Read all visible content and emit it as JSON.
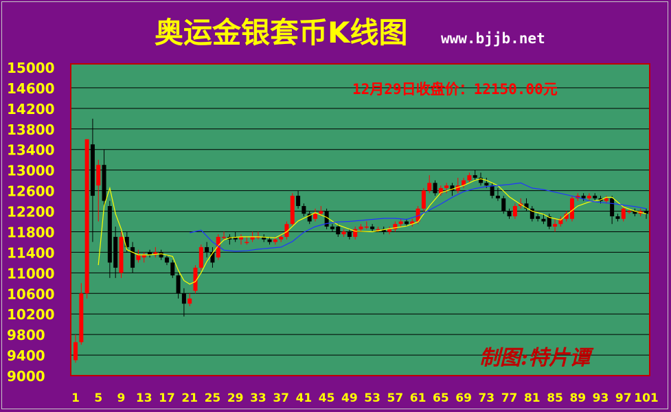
{
  "header": {
    "title": "奥运金银套币K线图",
    "site": "www.bjjb.net"
  },
  "annotations": {
    "close_price": "12月29日收盘价：12150.00元",
    "author": "制图:特片谭"
  },
  "colors": {
    "background": "#7a0f87",
    "plot_bg": "#3c9b6b",
    "up_candle": "#ff0000",
    "down_candle": "#000000",
    "ma_short": "#ffff00",
    "ma_long": "#2233ff",
    "axis_text": "#ffff00"
  },
  "chart_data": {
    "type": "candlestick",
    "title": "奥运金银套币K线图",
    "ylim": [
      9000,
      15000
    ],
    "yticks": [
      9000,
      9400,
      9800,
      10200,
      10600,
      11000,
      11400,
      11800,
      12200,
      12600,
      13000,
      13400,
      13800,
      14200,
      14600,
      15000
    ],
    "xticks": [
      1,
      5,
      9,
      13,
      17,
      21,
      25,
      29,
      33,
      37,
      41,
      45,
      49,
      53,
      57,
      61,
      65,
      69,
      73,
      77,
      81,
      85,
      89,
      93,
      97,
      101
    ],
    "grid": true,
    "candles": [
      [
        1,
        9300,
        9650,
        9250,
        9800
      ],
      [
        2,
        9650,
        10600,
        9600,
        10800
      ],
      [
        3,
        10600,
        13600,
        10500,
        13600
      ],
      [
        4,
        13500,
        12500,
        11600,
        14000
      ],
      [
        5,
        12700,
        13100,
        12000,
        13200
      ],
      [
        6,
        13100,
        12400,
        12300,
        13400
      ],
      [
        7,
        12300,
        11200,
        10900,
        12400
      ],
      [
        8,
        11700,
        11100,
        10900,
        11900
      ],
      [
        9,
        11000,
        11700,
        10900,
        11800
      ],
      [
        10,
        11700,
        11500,
        11400,
        11800
      ],
      [
        11,
        11500,
        11100,
        11000,
        11600
      ],
      [
        12,
        11250,
        11350,
        11200,
        11450
      ],
      [
        13,
        11300,
        11350,
        11200,
        11400
      ],
      [
        14,
        11400,
        11350,
        11300,
        11450
      ],
      [
        15,
        11350,
        11400,
        11300,
        11500
      ],
      [
        16,
        11400,
        11300,
        11250,
        11450
      ],
      [
        17,
        11300,
        11200,
        11150,
        11350
      ],
      [
        18,
        11200,
        10950,
        10900,
        11250
      ],
      [
        19,
        10950,
        10600,
        10500,
        11000
      ],
      [
        20,
        10600,
        10400,
        10150,
        10700
      ],
      [
        21,
        10400,
        10500,
        10350,
        10600
      ],
      [
        22,
        10650,
        11100,
        10600,
        11150
      ],
      [
        23,
        11100,
        11500,
        11050,
        11550
      ],
      [
        24,
        11500,
        11400,
        11300,
        11600
      ],
      [
        25,
        11400,
        11200,
        11100,
        11500
      ],
      [
        26,
        11300,
        11700,
        11250,
        11750
      ],
      [
        27,
        11700,
        11700,
        11650,
        11800
      ],
      [
        28,
        11700,
        11650,
        11550,
        11750
      ],
      [
        29,
        11700,
        11650,
        11600,
        11800
      ],
      [
        30,
        11650,
        11700,
        11550,
        11750
      ],
      [
        31,
        11600,
        11600,
        11550,
        11700
      ],
      [
        32,
        11650,
        11700,
        11600,
        11800
      ],
      [
        33,
        11700,
        11700,
        11650,
        11800
      ],
      [
        34,
        11700,
        11650,
        11600,
        11750
      ],
      [
        35,
        11650,
        11600,
        11550,
        11700
      ],
      [
        36,
        11600,
        11650,
        11550,
        11700
      ],
      [
        37,
        11650,
        11700,
        11600,
        11750
      ],
      [
        38,
        11700,
        11950,
        11650,
        12000
      ],
      [
        39,
        11950,
        12500,
        11900,
        12550
      ],
      [
        40,
        12500,
        12300,
        12250,
        12600
      ],
      [
        41,
        12300,
        12150,
        12100,
        12350
      ],
      [
        42,
        12150,
        12000,
        11950,
        12200
      ],
      [
        43,
        12050,
        12150,
        12000,
        12250
      ],
      [
        44,
        12150,
        12200,
        12100,
        12300
      ],
      [
        45,
        12200,
        11900,
        11850,
        12250
      ],
      [
        46,
        11900,
        11850,
        11800,
        11950
      ],
      [
        47,
        11900,
        11750,
        11700,
        11950
      ],
      [
        48,
        11750,
        11800,
        11700,
        11850
      ],
      [
        49,
        11800,
        11700,
        11650,
        11850
      ],
      [
        50,
        11700,
        11850,
        11650,
        11900
      ],
      [
        51,
        11850,
        11900,
        11800,
        11950
      ],
      [
        52,
        11900,
        11900,
        11850,
        12000
      ],
      [
        53,
        11900,
        11850,
        11800,
        11950
      ],
      [
        54,
        11850,
        11850,
        11800,
        11900
      ],
      [
        55,
        11850,
        11800,
        11750,
        11900
      ],
      [
        56,
        11800,
        11850,
        11750,
        11900
      ],
      [
        57,
        11850,
        11950,
        11800,
        12000
      ],
      [
        58,
        11950,
        12000,
        11900,
        12050
      ],
      [
        59,
        12000,
        11950,
        11900,
        12050
      ],
      [
        60,
        11950,
        12000,
        11900,
        12050
      ],
      [
        61,
        12000,
        12250,
        11950,
        12300
      ],
      [
        62,
        12250,
        12600,
        12200,
        12650
      ],
      [
        63,
        12600,
        12750,
        12550,
        12900
      ],
      [
        64,
        12750,
        12550,
        12500,
        12800
      ],
      [
        65,
        12550,
        12650,
        12500,
        12700
      ],
      [
        66,
        12650,
        12700,
        12550,
        12750
      ],
      [
        67,
        12700,
        12600,
        12500,
        12750
      ],
      [
        68,
        12600,
        12700,
        12550,
        12850
      ],
      [
        69,
        12700,
        12800,
        12650,
        12850
      ],
      [
        70,
        12800,
        12900,
        12750,
        12950
      ],
      [
        71,
        12900,
        12850,
        12800,
        13000
      ],
      [
        72,
        12850,
        12750,
        12700,
        12950
      ],
      [
        73,
        12750,
        12700,
        12650,
        12850
      ],
      [
        74,
        12700,
        12500,
        12450,
        12750
      ],
      [
        75,
        12500,
        12450,
        12400,
        12650
      ],
      [
        76,
        12450,
        12200,
        12150,
        12500
      ],
      [
        77,
        12200,
        12100,
        12050,
        12250
      ],
      [
        78,
        12100,
        12300,
        12050,
        12350
      ],
      [
        79,
        12300,
        12350,
        12250,
        12450
      ],
      [
        80,
        12350,
        12250,
        12200,
        12450
      ],
      [
        81,
        12250,
        12050,
        12000,
        12300
      ],
      [
        82,
        12100,
        12050,
        12000,
        12150
      ],
      [
        83,
        12050,
        12000,
        11950,
        12150
      ],
      [
        84,
        12100,
        11900,
        11850,
        12150
      ],
      [
        85,
        11900,
        11950,
        11800,
        12050
      ],
      [
        86,
        11950,
        12050,
        11900,
        12100
      ],
      [
        87,
        12050,
        12150,
        12000,
        12200
      ],
      [
        88,
        12050,
        12450,
        12000,
        12500
      ],
      [
        89,
        12450,
        12500,
        12400,
        12550
      ],
      [
        90,
        12500,
        12450,
        12400,
        12550
      ],
      [
        91,
        12450,
        12500,
        12400,
        12550
      ],
      [
        92,
        12500,
        12450,
        12400,
        12550
      ],
      [
        93,
        12450,
        12400,
        12350,
        12500
      ],
      [
        94,
        12400,
        12450,
        12350,
        12500
      ],
      [
        95,
        12450,
        12100,
        11950,
        12500
      ],
      [
        96,
        12100,
        12050,
        12000,
        12150
      ],
      [
        97,
        12050,
        12250,
        12000,
        12300
      ],
      [
        98,
        12200,
        12200,
        12150,
        12250
      ],
      [
        99,
        12200,
        12150,
        12100,
        12250
      ],
      [
        100,
        12150,
        12200,
        12100,
        12250
      ],
      [
        101,
        12200,
        12150,
        12050,
        12250
      ]
    ],
    "series": [
      {
        "x": [
          5,
          6,
          7,
          8,
          9,
          10,
          12,
          14,
          16,
          18,
          19,
          20,
          21,
          22,
          23,
          24,
          25,
          26,
          27,
          28,
          30,
          33,
          36,
          38,
          40,
          43,
          45,
          47,
          50,
          53,
          56,
          59,
          61,
          63,
          65,
          67,
          69,
          71,
          72,
          73,
          75,
          77,
          79,
          81,
          83,
          84,
          86,
          87,
          89,
          91,
          93,
          94,
          95,
          97,
          99,
          101
        ],
        "y": [
          11150,
          12300,
          12650,
          12150,
          11850,
          11450,
          11350,
          11350,
          11370,
          11320,
          11050,
          10850,
          10780,
          10830,
          11000,
          11220,
          11380,
          11530,
          11640,
          11680,
          11700,
          11700,
          11680,
          11800,
          12010,
          12170,
          12080,
          11930,
          11810,
          11800,
          11860,
          11910,
          11990,
          12300,
          12560,
          12630,
          12700,
          12800,
          12830,
          12800,
          12700,
          12480,
          12330,
          12200,
          12140,
          12080,
          12030,
          12130,
          12300,
          12380,
          12420,
          12470,
          12470,
          12280,
          12200,
          12150
        ]
      },
      {
        "x": [
          21,
          23,
          25,
          27,
          29,
          31,
          33,
          35,
          37,
          39,
          41,
          43,
          45,
          47,
          49,
          51,
          53,
          55,
          57,
          59,
          61,
          63,
          65,
          67,
          69,
          71,
          73,
          75,
          77,
          79,
          81,
          83,
          85,
          87,
          89,
          91,
          93,
          95,
          97,
          99,
          101
        ],
        "y": [
          11780,
          11830,
          11600,
          11440,
          11420,
          11430,
          11460,
          11480,
          11500,
          11610,
          11790,
          11900,
          11960,
          11990,
          12000,
          12020,
          12040,
          12060,
          12060,
          12040,
          12110,
          12220,
          12340,
          12470,
          12580,
          12640,
          12680,
          12700,
          12720,
          12750,
          12650,
          12620,
          12570,
          12520,
          12470,
          12400,
          12370,
          12350,
          12320,
          12290,
          12250
        ]
      }
    ]
  }
}
